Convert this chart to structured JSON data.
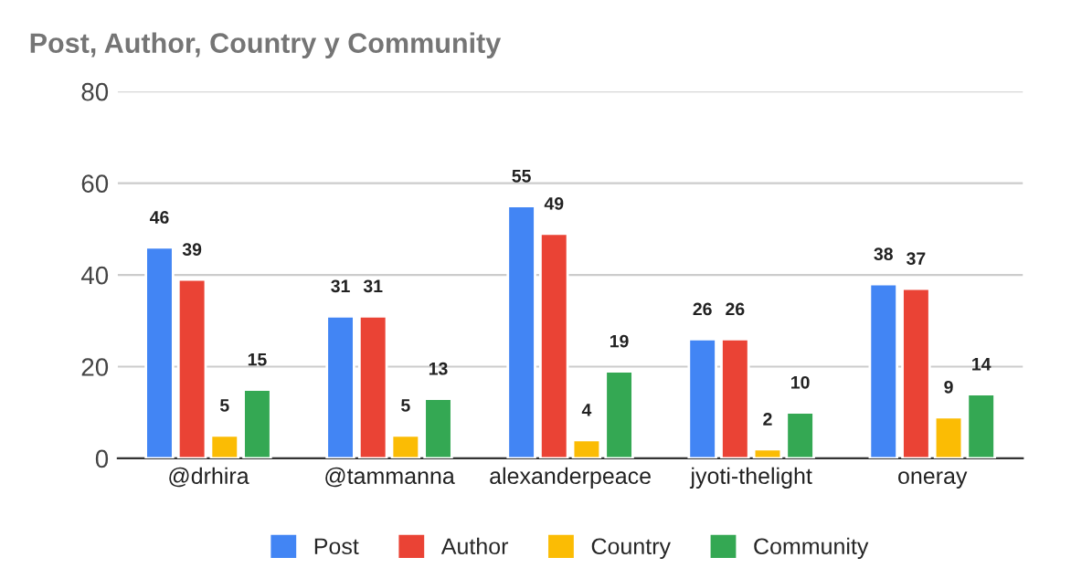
{
  "chart_data": {
    "type": "bar",
    "title": "Post, Author, Country y Community",
    "categories": [
      "@drhira",
      "@tammanna",
      "alexanderpeace",
      "jyoti-thelight",
      "oneray"
    ],
    "series": [
      {
        "name": "Post",
        "color": "#4285f4",
        "values": [
          46,
          31,
          55,
          26,
          38
        ]
      },
      {
        "name": "Author",
        "color": "#ea4335",
        "values": [
          39,
          31,
          49,
          26,
          37
        ]
      },
      {
        "name": "Country",
        "color": "#fbbc04",
        "values": [
          5,
          5,
          4,
          2,
          9
        ]
      },
      {
        "name": "Community",
        "color": "#34a853",
        "values": [
          15,
          13,
          19,
          10,
          14
        ]
      }
    ],
    "ylim": [
      0,
      80
    ],
    "yticks": [
      0,
      20,
      40,
      60,
      80
    ],
    "grid": "y",
    "legend": "bottom",
    "data_labels": true
  }
}
